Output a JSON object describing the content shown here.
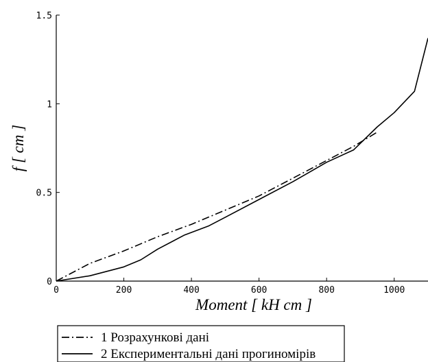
{
  "chart_data": {
    "type": "line",
    "xlabel": "Moment [ kH cm ]",
    "ylabel": "f [ cm ]",
    "xlim": [
      0,
      1100
    ],
    "ylim": [
      0,
      1.5
    ],
    "grid": false,
    "legend_position": "bottom-left",
    "x_ticks": [
      {
        "value": 0,
        "label": "0"
      },
      {
        "value": 200,
        "label": "200"
      },
      {
        "value": 400,
        "label": "400"
      },
      {
        "value": 600,
        "label": "600"
      },
      {
        "value": 800,
        "label": "800"
      },
      {
        "value": 1000,
        "label": "1000"
      }
    ],
    "y_ticks": [
      {
        "value": 0,
        "label": "0"
      },
      {
        "value": 0.5,
        "label": "0.5"
      },
      {
        "value": 1,
        "label": "1"
      },
      {
        "value": 1.5,
        "label": "1.5"
      }
    ],
    "series": [
      {
        "name": "1 Розрахункові дані",
        "style": "dash-dot",
        "color": "#000000",
        "x": [
          0,
          100,
          200,
          300,
          400,
          500,
          600,
          700,
          800,
          880,
          950
        ],
        "y": [
          0,
          0.1,
          0.17,
          0.25,
          0.32,
          0.4,
          0.48,
          0.58,
          0.68,
          0.76,
          0.84
        ]
      },
      {
        "name": "2 Експериментальні дані прогиномірів",
        "style": "solid",
        "color": "#000000",
        "x": [
          0,
          100,
          200,
          250,
          300,
          380,
          450,
          500,
          600,
          700,
          800,
          880,
          950,
          1000,
          1060,
          1100
        ],
        "y": [
          0,
          0.03,
          0.08,
          0.12,
          0.18,
          0.26,
          0.31,
          0.36,
          0.46,
          0.56,
          0.67,
          0.74,
          0.87,
          0.95,
          1.07,
          1.37
        ]
      }
    ]
  }
}
